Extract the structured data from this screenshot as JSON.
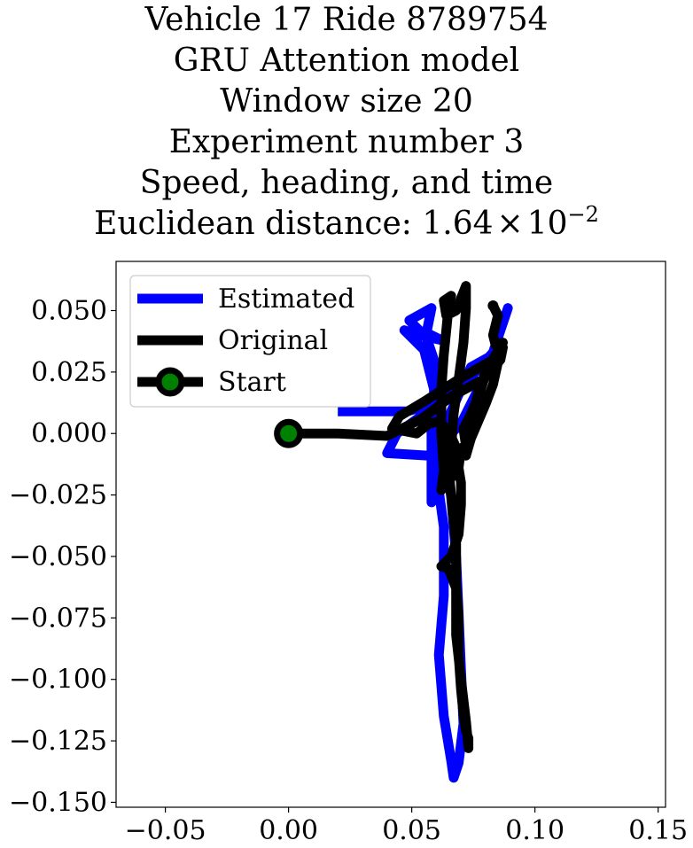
{
  "title_lines": [
    "Vehicle 17 Ride 8789754",
    "GRU Attention model",
    "Window size 20",
    "Experiment number 3",
    "Speed, heading, and time"
  ],
  "title_distance": {
    "prefix": "Euclidean distance: 1.64",
    "times": "×",
    "base": "10",
    "exponent": "−2"
  },
  "chart_data": {
    "type": "line",
    "xlim": [
      -0.07,
      0.153
    ],
    "ylim": [
      -0.152,
      0.07
    ],
    "x_ticks": [
      -0.05,
      0.0,
      0.05,
      0.1,
      0.15
    ],
    "x_tick_labels": [
      "−0.05",
      "0.00",
      "0.05",
      "0.10",
      "0.15"
    ],
    "y_ticks": [
      0.05,
      0.025,
      0.0,
      -0.025,
      -0.05,
      -0.075,
      -0.1,
      -0.125,
      -0.15
    ],
    "y_tick_labels": [
      "0.050",
      "0.025",
      "0.000",
      "−0.025",
      "−0.050",
      "−0.075",
      "−0.100",
      "−0.125",
      "−0.150"
    ],
    "grid": false,
    "legend_position": "top-left",
    "series": [
      {
        "name": "Estimated",
        "color": "#0000ff",
        "points": [
          [
            0.02,
            0.009
          ],
          [
            0.048,
            0.009
          ],
          [
            0.062,
            0.013
          ],
          [
            0.074,
            0.023
          ],
          [
            0.083,
            0.033
          ],
          [
            0.089,
            0.051
          ],
          [
            0.08,
            0.024
          ],
          [
            0.07,
            0.004
          ],
          [
            0.057,
            -0.009
          ],
          [
            0.04,
            -0.008
          ],
          [
            0.044,
            0.0
          ],
          [
            0.062,
            0.013
          ],
          [
            0.077,
            0.026
          ],
          [
            0.083,
            0.032
          ],
          [
            0.074,
            0.027
          ],
          [
            0.066,
            0.009
          ],
          [
            0.061,
            -0.008
          ],
          [
            0.058,
            -0.028
          ],
          [
            0.058,
            0.003
          ],
          [
            0.06,
            0.018
          ],
          [
            0.059,
            0.03
          ],
          [
            0.056,
            0.039
          ],
          [
            0.049,
            0.046
          ],
          [
            0.058,
            0.051
          ],
          [
            0.056,
            0.041
          ],
          [
            0.062,
            0.038
          ],
          [
            0.053,
            0.04
          ],
          [
            0.047,
            0.042
          ],
          [
            0.055,
            0.034
          ],
          [
            0.059,
            0.018
          ],
          [
            0.059,
            0.0
          ],
          [
            0.06,
            -0.016
          ],
          [
            0.063,
            -0.038
          ],
          [
            0.063,
            -0.066
          ],
          [
            0.061,
            -0.09
          ],
          [
            0.063,
            -0.115
          ],
          [
            0.066,
            -0.133
          ],
          [
            0.067,
            -0.14
          ],
          [
            0.069,
            -0.134
          ],
          [
            0.071,
            -0.118
          ],
          [
            0.07,
            -0.096
          ],
          [
            0.069,
            -0.073
          ],
          [
            0.068,
            -0.05
          ],
          [
            0.066,
            -0.026
          ],
          [
            0.064,
            -0.01
          ]
        ]
      },
      {
        "name": "Original",
        "color": "#000000",
        "points": [
          [
            -0.005,
            0.0
          ],
          [
            0.0,
            0.0
          ],
          [
            0.02,
            0.0
          ],
          [
            0.04,
            -0.001
          ],
          [
            0.054,
            0.006
          ],
          [
            0.066,
            0.015
          ],
          [
            0.079,
            0.022
          ],
          [
            0.086,
            0.03
          ],
          [
            0.087,
            0.035
          ],
          [
            0.083,
            0.03
          ],
          [
            0.069,
            0.022
          ],
          [
            0.055,
            0.013
          ],
          [
            0.045,
            0.007
          ],
          [
            0.042,
            0.002
          ],
          [
            0.052,
            0.0
          ],
          [
            0.057,
            0.004
          ],
          [
            0.061,
            0.005
          ],
          [
            0.065,
            0.001
          ],
          [
            0.069,
            -0.008
          ],
          [
            0.068,
            -0.015
          ],
          [
            0.064,
            -0.021
          ],
          [
            0.062,
            -0.023
          ],
          [
            0.063,
            -0.015
          ],
          [
            0.062,
            0.0
          ],
          [
            0.062,
            0.018
          ],
          [
            0.063,
            0.032
          ],
          [
            0.064,
            0.042
          ],
          [
            0.065,
            0.052
          ],
          [
            0.066,
            0.056
          ],
          [
            0.063,
            0.054
          ],
          [
            0.064,
            0.048
          ],
          [
            0.068,
            0.05
          ],
          [
            0.072,
            0.06
          ],
          [
            0.072,
            0.051
          ],
          [
            0.071,
            0.037
          ],
          [
            0.069,
            0.022
          ],
          [
            0.067,
            0.008
          ],
          [
            0.066,
            -0.006
          ],
          [
            0.065,
            -0.015
          ],
          [
            0.066,
            -0.025
          ],
          [
            0.067,
            -0.035
          ],
          [
            0.068,
            -0.045
          ],
          [
            0.068,
            -0.06
          ],
          [
            0.069,
            -0.075
          ],
          [
            0.069,
            -0.09
          ],
          [
            0.07,
            -0.104
          ],
          [
            0.071,
            -0.114
          ],
          [
            0.072,
            -0.121
          ],
          [
            0.073,
            -0.124
          ],
          [
            0.073,
            -0.128
          ],
          [
            0.072,
            -0.117
          ],
          [
            0.07,
            -0.1
          ],
          [
            0.068,
            -0.082
          ],
          [
            0.068,
            -0.063
          ],
          [
            0.065,
            -0.055
          ],
          [
            0.062,
            -0.054
          ],
          [
            0.066,
            -0.05
          ],
          [
            0.069,
            -0.041
          ],
          [
            0.07,
            -0.029
          ],
          [
            0.07,
            -0.02
          ],
          [
            0.069,
            -0.014
          ],
          [
            0.07,
            -0.006
          ],
          [
            0.072,
            -0.005
          ],
          [
            0.071,
            0.002
          ],
          [
            0.074,
            0.008
          ],
          [
            0.077,
            0.015
          ],
          [
            0.08,
            0.024
          ],
          [
            0.083,
            0.03
          ],
          [
            0.085,
            0.029
          ],
          [
            0.083,
            0.02
          ],
          [
            0.08,
            0.012
          ],
          [
            0.077,
            0.005
          ],
          [
            0.074,
            -0.002
          ],
          [
            0.072,
            -0.009
          ],
          [
            0.074,
            0.003
          ],
          [
            0.077,
            0.017
          ],
          [
            0.08,
            0.025
          ],
          [
            0.084,
            0.032
          ],
          [
            0.087,
            0.037
          ],
          [
            0.084,
            0.036
          ],
          [
            0.083,
            0.04
          ],
          [
            0.085,
            0.048
          ],
          [
            0.083,
            0.052
          ]
        ]
      },
      {
        "name": "Start",
        "color": "#000000",
        "marker_face": "#008000",
        "points": [
          [
            0.0,
            0.0
          ]
        ]
      }
    ]
  }
}
